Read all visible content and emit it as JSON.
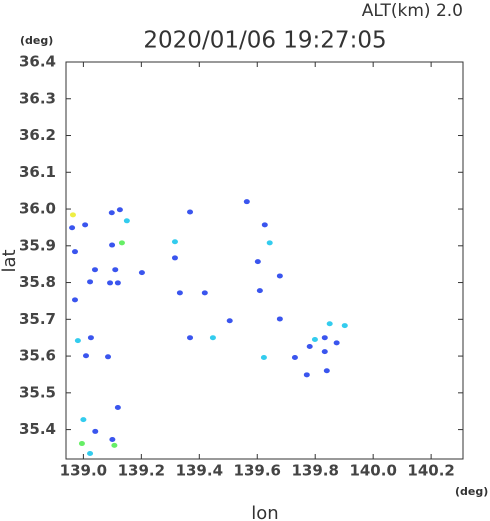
{
  "chart_data": {
    "type": "scatter",
    "title": "2020/01/06  19:27:05",
    "subtitle": "ALT(km)  2.0",
    "x_label": "lon",
    "y_label": "lat",
    "x_unit": "(deg)",
    "y_unit": "(deg)",
    "xlim": [
      138.94,
      140.31
    ],
    "ylim": [
      35.32,
      36.4
    ],
    "xticks": [
      {
        "value": 139,
        "label": "139.0"
      },
      139.2,
      139.4,
      139.6,
      139.8,
      {
        "value": 140,
        "label": "140.0"
      },
      140.2
    ],
    "yticks": [
      {
        "value": 35.4,
        "label": "35.4"
      },
      35.5,
      35.6,
      35.7,
      35.8,
      35.9,
      {
        "value": 36,
        "label": "36.0"
      },
      36.1,
      36.2,
      36.3,
      36.4
    ],
    "series": [
      {
        "color": "#3a55ee",
        "x": [
          138.961,
          139.006,
          138.971,
          139.04,
          139.023,
          138.971,
          139.092,
          139.119,
          139.098,
          139.126,
          139.026,
          139.009,
          139.085,
          139.119,
          139.041,
          139.1,
          139.316,
          139.202,
          139.368,
          139.333,
          139.419,
          139.505,
          139.368,
          139.564,
          139.626,
          139.602,
          139.678,
          139.609,
          139.678,
          139.73,
          139.771,
          139.781,
          139.833,
          139.874,
          139.84,
          139.833,
          139.099,
          139.11
        ],
        "values": [
          35.949,
          35.957,
          35.884,
          35.835,
          35.802,
          35.753,
          35.799,
          35.799,
          35.99,
          35.998,
          35.65,
          35.601,
          35.598,
          35.46,
          35.395,
          35.373,
          35.867,
          35.827,
          35.992,
          35.772,
          35.772,
          35.696,
          35.65,
          36.02,
          35.957,
          35.857,
          35.818,
          35.778,
          35.701,
          35.596,
          35.549,
          35.626,
          35.65,
          35.636,
          35.56,
          35.612,
          35.902,
          35.835
        ]
      },
      {
        "color": "#33ccee",
        "x": [
          139.0,
          139.023,
          138.981,
          139.15,
          139.316,
          139.447,
          139.643,
          139.623,
          139.799,
          139.85,
          139.902
        ],
        "values": [
          35.427,
          35.335,
          35.642,
          35.968,
          35.911,
          35.65,
          35.908,
          35.596,
          35.645,
          35.688,
          35.683
        ]
      },
      {
        "color": "#66ee66",
        "x": [
          139.107,
          138.995,
          139.133
        ],
        "values": [
          35.357,
          35.362,
          35.908
        ]
      },
      {
        "color": "#eeee44",
        "x": [
          138.964
        ],
        "values": [
          35.984
        ]
      }
    ]
  }
}
